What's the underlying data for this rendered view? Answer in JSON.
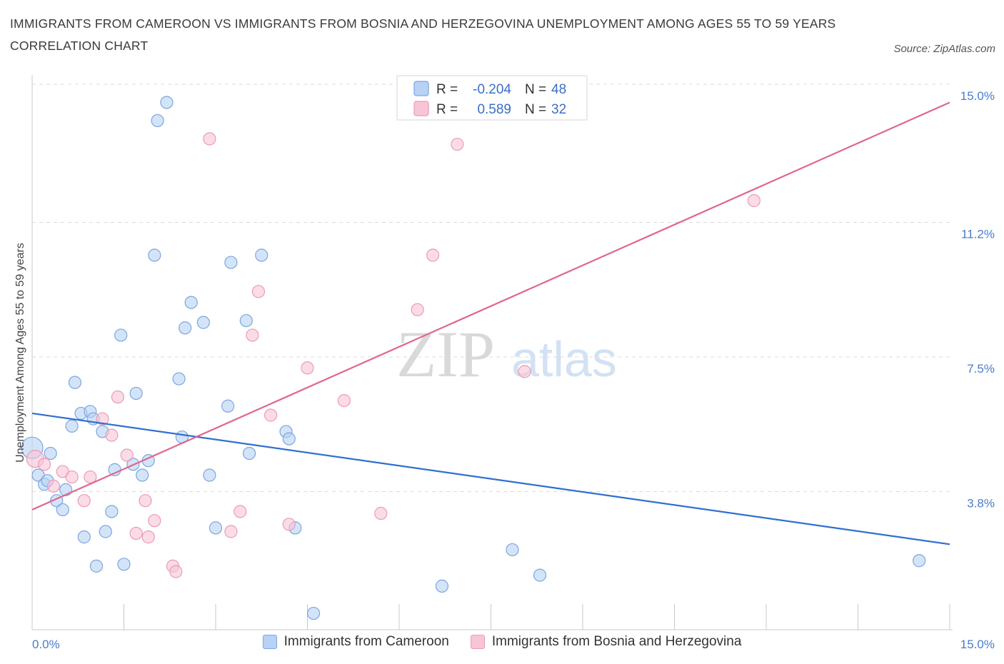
{
  "header": {
    "title": "IMMIGRANTS FROM CAMEROON VS IMMIGRANTS FROM BOSNIA AND HERZEGOVINA UNEMPLOYMENT AMONG AGES 55 TO 59 YEARS CORRELATION CHART",
    "source": "Source: ZipAtlas.com"
  },
  "colors": {
    "blue_fill": "#b8d2f4",
    "blue_stroke": "#7aa6e0",
    "blue_line": "#2f6fd0",
    "pink_fill": "#f8c5d6",
    "pink_stroke": "#eb9ab5",
    "pink_line": "#e0668f"
  },
  "chart_data": {
    "type": "scatter",
    "title": "IMMIGRANTS FROM CAMEROON VS IMMIGRANTS FROM BOSNIA AND HERZEGOVINA UNEMPLOYMENT AMONG AGES 55 TO 59 YEARS CORRELATION CHART",
    "ylabel": "Unemployment Among Ages 55 to 59 years",
    "xlabel": "",
    "xlim": [
      0,
      15
    ],
    "ylim": [
      0,
      15
    ],
    "x_tick_labels": [
      "0.0%",
      "15.0%"
    ],
    "y_ticks": [
      3.8,
      7.5,
      11.2,
      15.0
    ],
    "y_tick_labels": [
      "3.8%",
      "7.5%",
      "11.2%",
      "15.0%"
    ],
    "grid": "horizontal dashed",
    "watermark": {
      "zip": "ZIP",
      "atlas": "atlas"
    },
    "legend": {
      "placement": "top-center",
      "rows": [
        {
          "r_label": "R =",
          "r_value": "-0.204",
          "n_label": "N =",
          "n_value": "48"
        },
        {
          "r_label": "R =",
          "r_value": "0.589",
          "n_label": "N =",
          "n_value": "32"
        }
      ]
    },
    "series": [
      {
        "name": "Immigrants from Cameroon",
        "color": "#b8d2f4",
        "trend": {
          "x": [
            0,
            15
          ],
          "y": [
            5.95,
            2.35
          ]
        },
        "points": [
          [
            0.0,
            5.0
          ],
          [
            0.1,
            4.25
          ],
          [
            0.2,
            4.0
          ],
          [
            0.25,
            4.1
          ],
          [
            0.3,
            4.85
          ],
          [
            0.4,
            3.55
          ],
          [
            0.5,
            3.3
          ],
          [
            0.55,
            3.85
          ],
          [
            0.65,
            5.6
          ],
          [
            0.7,
            6.8
          ],
          [
            0.8,
            5.95
          ],
          [
            0.85,
            2.55
          ],
          [
            0.95,
            6.0
          ],
          [
            1.0,
            5.8
          ],
          [
            1.05,
            1.75
          ],
          [
            1.15,
            5.45
          ],
          [
            1.2,
            2.7
          ],
          [
            1.3,
            3.25
          ],
          [
            1.35,
            4.4
          ],
          [
            1.45,
            8.1
          ],
          [
            1.5,
            1.8
          ],
          [
            1.65,
            4.55
          ],
          [
            1.7,
            6.5
          ],
          [
            1.8,
            4.25
          ],
          [
            1.9,
            4.65
          ],
          [
            2.0,
            10.3
          ],
          [
            2.05,
            14.0
          ],
          [
            2.2,
            14.5
          ],
          [
            2.4,
            6.9
          ],
          [
            2.45,
            5.3
          ],
          [
            2.5,
            8.3
          ],
          [
            2.6,
            9.0
          ],
          [
            2.8,
            8.45
          ],
          [
            2.9,
            4.25
          ],
          [
            3.0,
            2.8
          ],
          [
            3.2,
            6.15
          ],
          [
            3.25,
            10.1
          ],
          [
            3.5,
            8.5
          ],
          [
            3.55,
            4.85
          ],
          [
            3.75,
            10.3
          ],
          [
            4.15,
            5.45
          ],
          [
            4.2,
            5.25
          ],
          [
            4.3,
            2.8
          ],
          [
            4.6,
            0.45
          ],
          [
            6.7,
            1.2
          ],
          [
            7.85,
            2.2
          ],
          [
            8.3,
            1.5
          ],
          [
            14.5,
            1.9
          ]
        ]
      },
      {
        "name": "Immigrants from Bosnia and Herzegovina",
        "color": "#f8c5d6",
        "trend": {
          "x": [
            0,
            15
          ],
          "y": [
            3.3,
            14.5
          ]
        },
        "points": [
          [
            0.05,
            4.7
          ],
          [
            0.2,
            4.55
          ],
          [
            0.35,
            3.95
          ],
          [
            0.5,
            4.35
          ],
          [
            0.65,
            4.2
          ],
          [
            0.85,
            3.55
          ],
          [
            0.95,
            4.2
          ],
          [
            1.15,
            5.8
          ],
          [
            1.3,
            5.35
          ],
          [
            1.4,
            6.4
          ],
          [
            1.55,
            4.8
          ],
          [
            1.7,
            2.65
          ],
          [
            1.85,
            3.55
          ],
          [
            1.9,
            2.55
          ],
          [
            2.0,
            3.0
          ],
          [
            2.3,
            1.75
          ],
          [
            2.35,
            1.6
          ],
          [
            2.9,
            13.5
          ],
          [
            3.25,
            2.7
          ],
          [
            3.4,
            3.25
          ],
          [
            3.6,
            8.1
          ],
          [
            3.7,
            9.3
          ],
          [
            3.9,
            5.9
          ],
          [
            4.2,
            2.9
          ],
          [
            4.5,
            7.2
          ],
          [
            5.1,
            6.3
          ],
          [
            5.7,
            3.2
          ],
          [
            6.3,
            8.8
          ],
          [
            6.55,
            10.3
          ],
          [
            6.95,
            13.35
          ],
          [
            8.05,
            7.1
          ],
          [
            11.8,
            11.8
          ]
        ]
      }
    ]
  }
}
